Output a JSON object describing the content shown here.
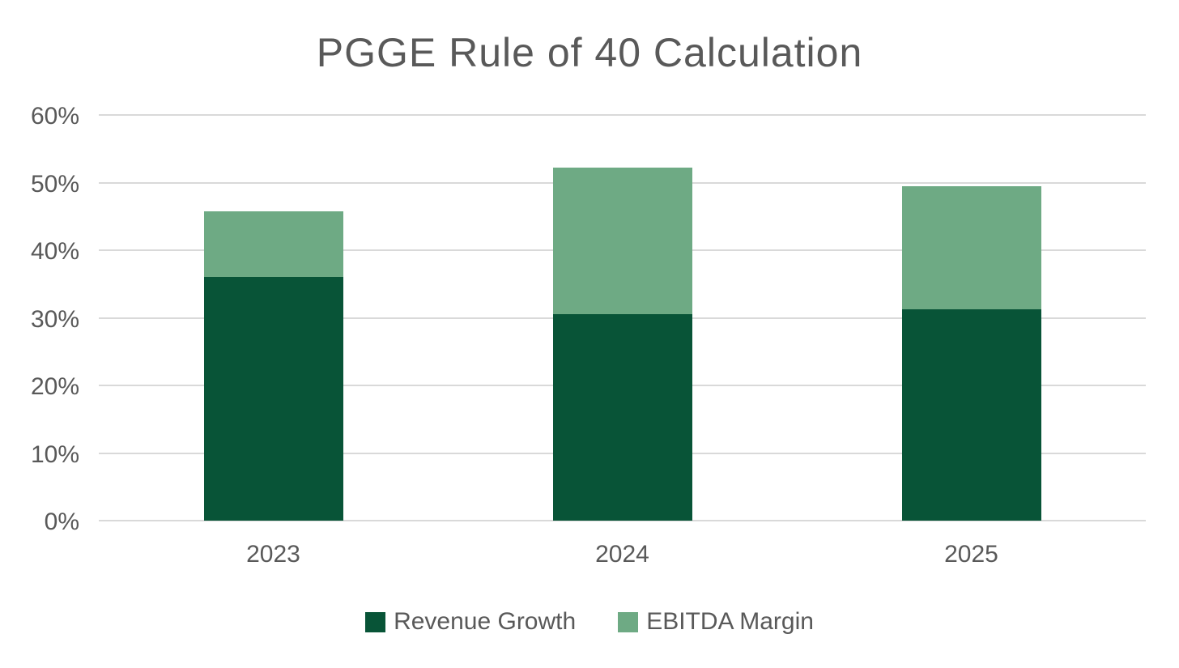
{
  "chart_data": {
    "type": "bar",
    "stacked": true,
    "title": "PGGE Rule of 40 Calculation",
    "categories": [
      "2023",
      "2024",
      "2025"
    ],
    "series": [
      {
        "name": "Revenue Growth",
        "color": "#085437",
        "values": [
          36.0,
          30.6,
          31.3
        ]
      },
      {
        "name": "EBITDA Margin",
        "color": "#6EAA84",
        "values": [
          9.8,
          21.6,
          18.2
        ]
      }
    ],
    "y_ticks": [
      "0%",
      "10%",
      "20%",
      "30%",
      "40%",
      "50%",
      "60%"
    ],
    "ylim": [
      0,
      60
    ],
    "xlabel": "",
    "ylabel": "",
    "grid": true,
    "legend_position": "bottom",
    "colors": {
      "grid": "#D9D9D9",
      "text": "#595959",
      "background": "#FFFFFF"
    }
  }
}
